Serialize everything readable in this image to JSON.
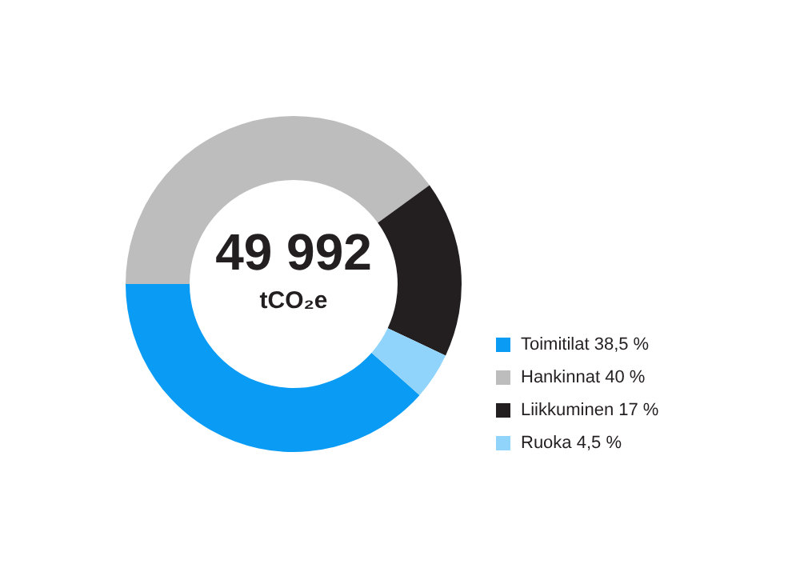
{
  "chart_data": {
    "type": "donut",
    "title": "49 992",
    "subtitle": "tCO₂e",
    "categories": [
      "Toimitilat",
      "Hankinnat",
      "Liikkuminen",
      "Ruoka"
    ],
    "values": [
      38.5,
      40,
      17,
      4.5
    ],
    "value_labels": [
      "38,5 %",
      "40 %",
      "17 %",
      "4,5 %"
    ],
    "colors": [
      "#0a9cf5",
      "#bdbdbd",
      "#231f20",
      "#90d4fc"
    ],
    "legend": "bottom right"
  }
}
